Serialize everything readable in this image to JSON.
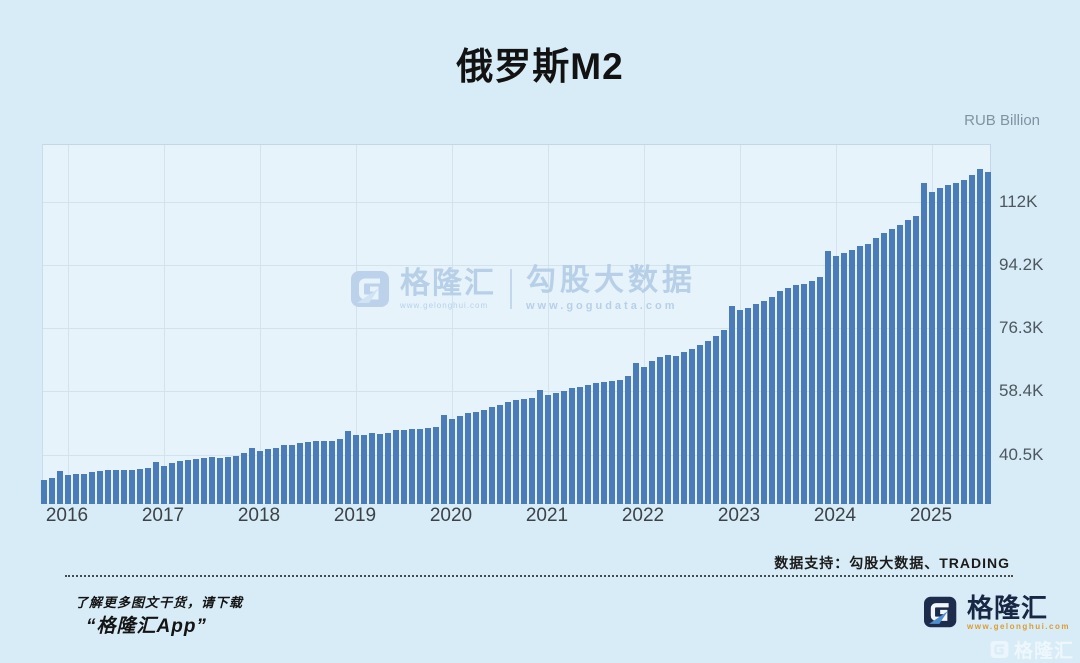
{
  "title": "俄罗斯M2",
  "y_axis": {
    "unit_label": "RUB Billion",
    "ticks": [
      {
        "label": "112K",
        "value": 112.0
      },
      {
        "label": "94.2K",
        "value": 94.2
      },
      {
        "label": "76.3K",
        "value": 76.3
      },
      {
        "label": "58.4K",
        "value": 58.4
      },
      {
        "label": "40.5K",
        "value": 40.5
      }
    ]
  },
  "x_axis": {
    "years": [
      "2016",
      "2017",
      "2018",
      "2019",
      "2020",
      "2021",
      "2022",
      "2023",
      "2024",
      "2025"
    ]
  },
  "watermark": {
    "brand": "格隆汇",
    "brand_url": "www.gelonghui.com",
    "product": "勾股大数据",
    "product_url": "www.gogudata.com"
  },
  "footer": {
    "data_support": "数据支持：勾股大数据、TRADING",
    "promo_line1": "了解更多图文干货，请下载",
    "promo_line2": "“格隆汇App”",
    "brand": "格隆汇",
    "brand_url": "www.gelonghui.com",
    "corner_brand": "格隆汇"
  },
  "colors": {
    "background": "#d7ecf6",
    "plot_background": "#e6f3fb",
    "bar": "#4b7cba",
    "gridline": "#d2e3ef",
    "title_text": "#121212",
    "axis_text": "#4e575f",
    "unit_text": "#8093a2",
    "watermark_blue": "#b5cde7",
    "logo_navy": "#1d2c4d",
    "logo_arrow_blue": "#4e8fd2",
    "logo_url_orange": "#dd9b33"
  },
  "chart_data": {
    "type": "bar",
    "title": "俄罗斯M2",
    "xlabel": "",
    "ylabel": "RUB Billion",
    "unit": "thousand RUB billion (trillion RUB)",
    "frequency": "monthly",
    "start_month": "2015-10",
    "end_month": "2025-08",
    "ylim": [
      26.5,
      128.0
    ],
    "yticks": [
      40.5,
      58.4,
      76.3,
      94.2,
      112.0
    ],
    "grid": true,
    "legend": "none",
    "bar_color": "#4b7cba",
    "values": [
      33.3,
      34.0,
      35.8,
      34.6,
      35.0,
      35.1,
      35.7,
      35.8,
      36.1,
      36.2,
      36.2,
      36.1,
      36.4,
      36.8,
      38.4,
      37.3,
      38.0,
      38.6,
      39.0,
      39.2,
      39.6,
      39.7,
      39.6,
      39.8,
      40.1,
      40.8,
      42.4,
      41.6,
      42.0,
      42.4,
      43.1,
      43.3,
      43.9,
      44.1,
      44.2,
      44.3,
      44.4,
      44.9,
      47.1,
      45.9,
      46.1,
      46.6,
      46.4,
      46.7,
      47.3,
      47.4,
      47.6,
      47.7,
      48.1,
      48.3,
      51.7,
      50.6,
      51.3,
      52.3,
      52.6,
      53.0,
      53.9,
      54.4,
      55.3,
      55.8,
      56.1,
      56.4,
      58.7,
      57.3,
      58.0,
      58.4,
      59.2,
      59.6,
      60.3,
      60.6,
      61.0,
      61.3,
      61.7,
      62.6,
      66.3,
      65.3,
      66.9,
      68.0,
      68.6,
      68.3,
      69.4,
      70.4,
      71.4,
      72.5,
      73.9,
      75.8,
      82.4,
      81.3,
      82.0,
      83.2,
      84.0,
      85.0,
      86.7,
      87.5,
      88.3,
      88.8,
      89.5,
      90.6,
      98.0,
      96.5,
      97.6,
      98.3,
      99.4,
      100.0,
      101.8,
      103.0,
      104.3,
      105.5,
      106.7,
      108.0,
      117.3,
      114.7,
      115.9,
      116.8,
      117.3,
      118.0,
      119.4,
      121.3,
      120.5
    ]
  }
}
